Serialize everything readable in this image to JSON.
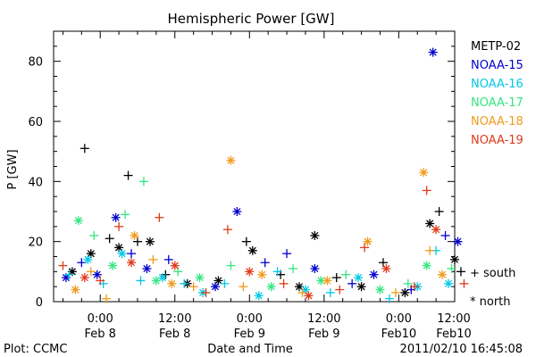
{
  "chart_data": {
    "type": "scatter",
    "title": "Hemispheric Power [GW]",
    "xlabel": "Date and Time",
    "ylabel": "P [GW]",
    "ylim": [
      0,
      90
    ],
    "xlim": [
      -7.5,
      57
    ],
    "x_unit": "hours from 2011-02-08 00:00",
    "yticks": [
      0,
      20,
      40,
      60,
      80
    ],
    "xticks": [
      {
        "x": 0,
        "line1": "0:00",
        "line2": "Feb 8"
      },
      {
        "x": 12,
        "line1": "12:00",
        "line2": "Feb 8"
      },
      {
        "x": 24,
        "line1": "0:00",
        "line2": "Feb 9"
      },
      {
        "x": 36,
        "line1": "12:00",
        "line2": "Feb 9"
      },
      {
        "x": 48,
        "line1": "0:00",
        "line2": "Feb10"
      },
      {
        "x": 60,
        "line1": "12:00",
        "line2": "Feb10"
      }
    ],
    "grid": false,
    "legend_position": "right",
    "marker_legend": {
      "plus": "+ south",
      "star": "* north"
    },
    "series": [
      {
        "name": "METP-02",
        "color": "#000000",
        "points": [
          [
            -2.5,
            51,
            "plus"
          ],
          [
            4.5,
            42,
            "plus"
          ],
          [
            -4.5,
            10,
            "star"
          ],
          [
            -1.5,
            16,
            "star"
          ],
          [
            1.5,
            21,
            "plus"
          ],
          [
            3.0,
            18,
            "star"
          ],
          [
            6.0,
            20,
            "plus"
          ],
          [
            8.0,
            20,
            "star"
          ],
          [
            10.5,
            9,
            "plus"
          ],
          [
            14.0,
            6,
            "star"
          ],
          [
            19.0,
            7,
            "star"
          ],
          [
            23.5,
            20,
            "plus"
          ],
          [
            24.5,
            17,
            "star"
          ],
          [
            29.0,
            9,
            "plus"
          ],
          [
            32.0,
            5,
            "star"
          ],
          [
            34.5,
            22,
            "star"
          ],
          [
            38.0,
            8,
            "plus"
          ],
          [
            42.0,
            5,
            "star"
          ],
          [
            45.5,
            13,
            "plus"
          ],
          [
            49.0,
            3,
            "star"
          ],
          [
            53.0,
            26,
            "star"
          ],
          [
            54.5,
            30,
            "plus"
          ],
          [
            57.0,
            14,
            "star"
          ],
          [
            58.0,
            10,
            "plus"
          ]
        ]
      },
      {
        "name": "NOAA-15",
        "color": "#0000cc",
        "points": [
          [
            -5.5,
            8,
            "star"
          ],
          [
            -3.0,
            13,
            "plus"
          ],
          [
            -0.5,
            9,
            "star"
          ],
          [
            2.5,
            28,
            "star"
          ],
          [
            5.0,
            16,
            "plus"
          ],
          [
            7.5,
            11,
            "star"
          ],
          [
            11.0,
            14,
            "plus"
          ],
          [
            18.5,
            5,
            "star"
          ],
          [
            22.0,
            30,
            "star"
          ],
          [
            26.5,
            13,
            "plus"
          ],
          [
            30.0,
            16,
            "plus"
          ],
          [
            34.5,
            11,
            "star"
          ],
          [
            40.5,
            6,
            "plus"
          ],
          [
            44.0,
            9,
            "star"
          ],
          [
            50.0,
            4,
            "plus"
          ],
          [
            53.5,
            83,
            "star"
          ],
          [
            55.5,
            22,
            "plus"
          ],
          [
            57.5,
            20,
            "star"
          ]
        ]
      },
      {
        "name": "NOAA-16",
        "color": "#00c8e6",
        "points": [
          [
            -5.0,
            9,
            "plus"
          ],
          [
            -2.0,
            14,
            "star"
          ],
          [
            0.5,
            6,
            "plus"
          ],
          [
            3.5,
            16,
            "star"
          ],
          [
            6.5,
            7,
            "plus"
          ],
          [
            10.0,
            8,
            "star"
          ],
          [
            13.5,
            6,
            "plus"
          ],
          [
            16.5,
            3,
            "star"
          ],
          [
            20.0,
            6,
            "plus"
          ],
          [
            25.5,
            2,
            "star"
          ],
          [
            28.5,
            10,
            "plus"
          ],
          [
            33.0,
            4,
            "star"
          ],
          [
            37.0,
            3,
            "plus"
          ],
          [
            41.5,
            8,
            "star"
          ],
          [
            46.5,
            1,
            "plus"
          ],
          [
            51.0,
            5,
            "star"
          ],
          [
            54.0,
            17,
            "plus"
          ],
          [
            56.0,
            6,
            "star"
          ]
        ]
      },
      {
        "name": "NOAA-17",
        "color": "#33e680",
        "points": [
          [
            -3.5,
            27,
            "star"
          ],
          [
            -1.0,
            22,
            "plus"
          ],
          [
            2.0,
            12,
            "star"
          ],
          [
            4.0,
            29,
            "plus"
          ],
          [
            7.0,
            40,
            "plus"
          ],
          [
            9.0,
            7,
            "star"
          ],
          [
            12.5,
            10,
            "plus"
          ],
          [
            16.0,
            8,
            "star"
          ],
          [
            21.0,
            12,
            "plus"
          ],
          [
            27.5,
            5,
            "star"
          ],
          [
            31.0,
            11,
            "plus"
          ],
          [
            35.5,
            7,
            "star"
          ],
          [
            39.5,
            9,
            "plus"
          ],
          [
            45.0,
            4,
            "star"
          ],
          [
            49.5,
            6,
            "plus"
          ],
          [
            52.5,
            12,
            "star"
          ],
          [
            56.5,
            11,
            "plus"
          ]
        ]
      },
      {
        "name": "NOAA-18",
        "color": "#f09a1a",
        "points": [
          [
            -4.0,
            4,
            "star"
          ],
          [
            -1.5,
            10,
            "plus"
          ],
          [
            1.0,
            1,
            "plus"
          ],
          [
            5.5,
            22,
            "star"
          ],
          [
            8.5,
            14,
            "plus"
          ],
          [
            11.5,
            6,
            "star"
          ],
          [
            15.0,
            5,
            "plus"
          ],
          [
            21.0,
            47,
            "star"
          ],
          [
            23.0,
            5,
            "plus"
          ],
          [
            26.0,
            9,
            "star"
          ],
          [
            32.5,
            3,
            "plus"
          ],
          [
            36.5,
            7,
            "star"
          ],
          [
            43.0,
            20,
            "star"
          ],
          [
            47.5,
            3,
            "plus"
          ],
          [
            52.0,
            43,
            "star"
          ],
          [
            53.0,
            17,
            "plus"
          ],
          [
            55.0,
            9,
            "star"
          ]
        ]
      },
      {
        "name": "NOAA-19",
        "color": "#e03a1a",
        "points": [
          [
            -6.0,
            12,
            "plus"
          ],
          [
            -2.5,
            8,
            "star"
          ],
          [
            0.0,
            7,
            "plus"
          ],
          [
            3.0,
            25,
            "plus"
          ],
          [
            5.0,
            13,
            "star"
          ],
          [
            9.5,
            28,
            "plus"
          ],
          [
            12.0,
            12,
            "star"
          ],
          [
            17.0,
            3,
            "plus"
          ],
          [
            20.5,
            24,
            "plus"
          ],
          [
            24.0,
            10,
            "star"
          ],
          [
            29.5,
            6,
            "plus"
          ],
          [
            33.5,
            2,
            "star"
          ],
          [
            38.5,
            4,
            "plus"
          ],
          [
            42.5,
            18,
            "plus"
          ],
          [
            46.0,
            11,
            "star"
          ],
          [
            50.5,
            5,
            "plus"
          ],
          [
            52.5,
            37,
            "plus"
          ],
          [
            54.0,
            24,
            "star"
          ],
          [
            58.5,
            6,
            "plus"
          ]
        ]
      }
    ]
  },
  "footer": {
    "left": "Plot: CCMC",
    "right": "2011/02/10 16:45:08"
  }
}
